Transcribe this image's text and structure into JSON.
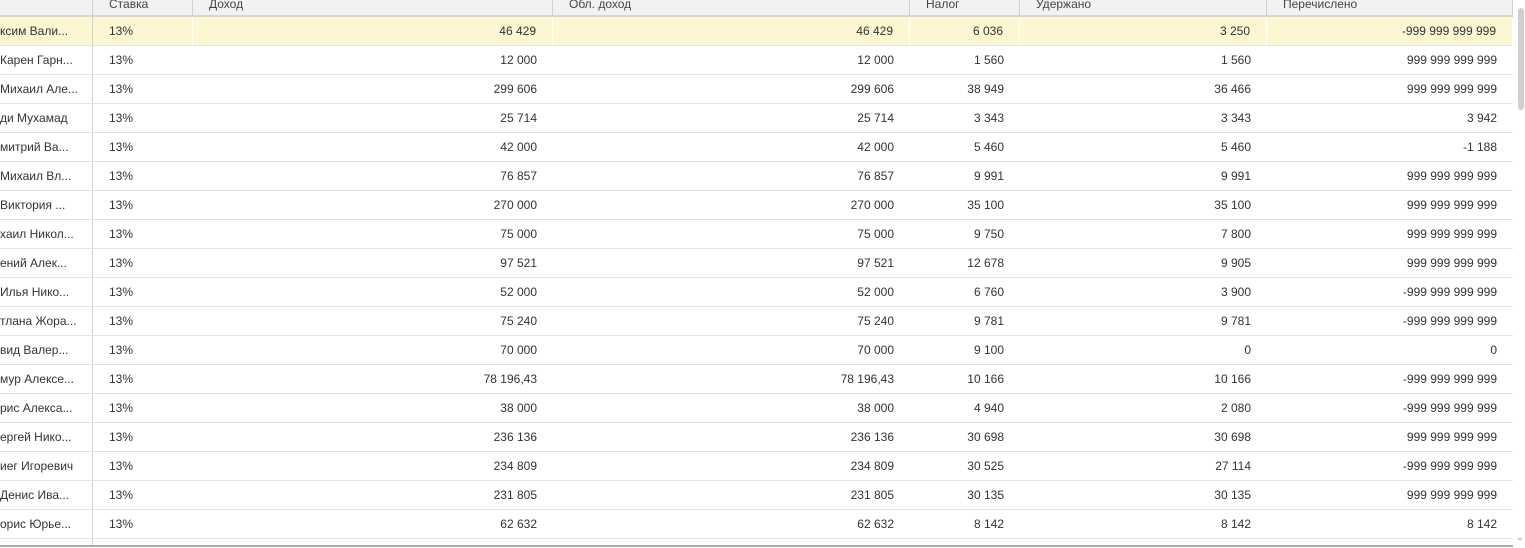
{
  "columns": [
    "",
    "Ставка",
    "Доход",
    "Обл. доход",
    "Налог",
    "Удержано",
    "Перечислено"
  ],
  "selected_row": 0,
  "colors": {
    "selected_row": "#fcf6d2",
    "header_bg": "#f2f2f2"
  },
  "rows": [
    [
      "ксим Вали...",
      "13%",
      "46 429",
      "46 429",
      "6 036",
      "3 250",
      "-999 999 999 999"
    ],
    [
      "Карен Гарн...",
      "13%",
      "12 000",
      "12 000",
      "1 560",
      "1 560",
      "999 999 999 999"
    ],
    [
      "Михаил Але...",
      "13%",
      "299 606",
      "299 606",
      "38 949",
      "36 466",
      "999 999 999 999"
    ],
    [
      "ди Мухамад",
      "13%",
      "25 714",
      "25 714",
      "3 343",
      "3 343",
      "3 942"
    ],
    [
      "митрий Ва...",
      "13%",
      "42 000",
      "42 000",
      "5 460",
      "5 460",
      "-1 188"
    ],
    [
      "Михаил Вл...",
      "13%",
      "76 857",
      "76 857",
      "9 991",
      "9 991",
      "999 999 999 999"
    ],
    [
      "Виктория ...",
      "13%",
      "270 000",
      "270 000",
      "35 100",
      "35 100",
      "999 999 999 999"
    ],
    [
      "хаил Никол...",
      "13%",
      "75 000",
      "75 000",
      "9 750",
      "7 800",
      "999 999 999 999"
    ],
    [
      "ений Алек...",
      "13%",
      "97 521",
      "97 521",
      "12 678",
      "9 905",
      "999 999 999 999"
    ],
    [
      "Илья Нико...",
      "13%",
      "52 000",
      "52 000",
      "6 760",
      "3 900",
      "-999 999 999 999"
    ],
    [
      "тлана Жора...",
      "13%",
      "75 240",
      "75 240",
      "9 781",
      "9 781",
      "-999 999 999 999"
    ],
    [
      "вид Валер...",
      "13%",
      "70 000",
      "70 000",
      "9 100",
      "0",
      "0"
    ],
    [
      "мур Алексе...",
      "13%",
      "78 196,43",
      "78 196,43",
      "10 166",
      "10 166",
      "-999 999 999 999"
    ],
    [
      "рис Алекса...",
      "13%",
      "38 000",
      "38 000",
      "4 940",
      "2 080",
      "-999 999 999 999"
    ],
    [
      "ергей Нико...",
      "13%",
      "236 136",
      "236 136",
      "30 698",
      "30 698",
      "999 999 999 999"
    ],
    [
      "иег Игоревич",
      "13%",
      "234 809",
      "234 809",
      "30 525",
      "27 114",
      "-999 999 999 999"
    ],
    [
      "Денис Ива...",
      "13%",
      "231 805",
      "231 805",
      "30 135",
      "30 135",
      "999 999 999 999"
    ],
    [
      "орис Юрье...",
      "13%",
      "62 632",
      "62 632",
      "8 142",
      "8 142",
      "8 142"
    ]
  ]
}
